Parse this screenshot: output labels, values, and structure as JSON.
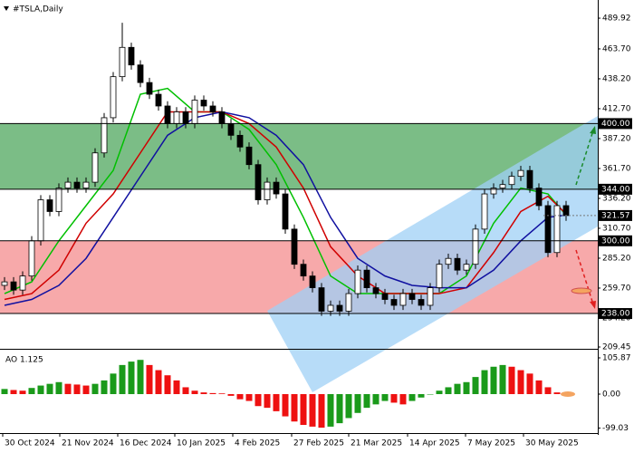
{
  "chart_data": [
    {
      "type": "candlestick",
      "title": "#TSLA,Daily",
      "xlim": [
        -0.5,
        65.5
      ],
      "ylim": [
        207.9,
        505.4
      ],
      "xticks": [
        {
          "value": -0.2,
          "label": "30 Oct 2024"
        },
        {
          "value": 6.1,
          "label": "21 Nov 2024"
        },
        {
          "value": 12.5,
          "label": "16 Dec 2024"
        },
        {
          "value": 18.8,
          "label": "10 Jan 2025"
        },
        {
          "value": 25.2,
          "label": "4 Feb 2025"
        },
        {
          "value": 31.7,
          "label": "27 Feb 2025"
        },
        {
          "value": 38,
          "label": "21 Mar 2025"
        },
        {
          "value": 44.5,
          "label": "14 Apr 2025"
        },
        {
          "value": 50.9,
          "label": "7 May 2025"
        },
        {
          "value": 57.3,
          "label": "30 May 2025"
        }
      ],
      "yticks": [
        {
          "value": 489.92,
          "label": "489.92"
        },
        {
          "value": 463.7,
          "label": "463.70"
        },
        {
          "value": 438.2,
          "label": "438.20"
        },
        {
          "value": 412.7,
          "label": "412.70"
        },
        {
          "value": 387.2,
          "label": "387.20"
        },
        {
          "value": 361.7,
          "label": "361.70"
        },
        {
          "value": 336.2,
          "label": "336.20"
        },
        {
          "value": 310.7,
          "label": "310.70"
        },
        {
          "value": 285.2,
          "label": "285.20"
        },
        {
          "value": 259.7,
          "label": "259.70"
        },
        {
          "value": 234.2,
          "label": "234.20"
        },
        {
          "value": 209.45,
          "label": "209.45"
        }
      ],
      "open": [
        262,
        265,
        258,
        270,
        300,
        335,
        325,
        345,
        350,
        345,
        350,
        375,
        405,
        440,
        465,
        450,
        435,
        425,
        415,
        400,
        410,
        400,
        420,
        415,
        410,
        400,
        390,
        380,
        365,
        335,
        350,
        340,
        310,
        280,
        270,
        260,
        240,
        245,
        240,
        255,
        275,
        260,
        255,
        250,
        245,
        255,
        250,
        245,
        260,
        280,
        285,
        275,
        280,
        310,
        340,
        345,
        348,
        355,
        360,
        345,
        330,
        290,
        330
      ],
      "high": [
        269,
        269,
        274,
        304,
        339,
        339,
        349,
        354,
        354,
        354,
        379,
        409,
        444,
        486,
        469,
        454,
        439,
        429,
        419,
        414,
        414,
        424,
        424,
        419,
        414,
        404,
        394,
        384,
        369,
        354,
        354,
        344,
        314,
        284,
        274,
        264,
        249,
        249,
        259,
        279,
        279,
        264,
        259,
        254,
        259,
        259,
        254,
        264,
        284,
        289,
        289,
        284,
        314,
        344,
        349,
        352,
        359,
        364,
        364,
        349,
        334,
        334,
        334
      ],
      "low": [
        258,
        254,
        254,
        266,
        296,
        321,
        321,
        341,
        341,
        341,
        346,
        371,
        401,
        436,
        446,
        431,
        421,
        411,
        396,
        396,
        396,
        396,
        411,
        406,
        396,
        386,
        376,
        361,
        331,
        331,
        336,
        306,
        276,
        266,
        256,
        236,
        236,
        236,
        236,
        251,
        256,
        251,
        246,
        241,
        241,
        246,
        241,
        241,
        256,
        276,
        271,
        271,
        276,
        306,
        336,
        341,
        344,
        351,
        341,
        326,
        286,
        286,
        317
      ],
      "close": [
        265,
        258,
        270,
        300,
        335,
        325,
        345,
        350,
        345,
        350,
        375,
        405,
        440,
        465,
        450,
        435,
        425,
        415,
        400,
        410,
        400,
        420,
        415,
        410,
        400,
        390,
        380,
        365,
        335,
        350,
        340,
        310,
        280,
        270,
        260,
        240,
        245,
        240,
        255,
        275,
        260,
        255,
        250,
        245,
        255,
        250,
        245,
        260,
        280,
        285,
        275,
        280,
        310,
        340,
        345,
        348,
        355,
        360,
        345,
        330,
        290,
        330,
        321.57
      ],
      "bull_color": "#ffffff",
      "bear_color": "#000000",
      "series": [
        {
          "color": "#00c000",
          "x": [
            0,
            3,
            6,
            9,
            12,
            15,
            18,
            21,
            24,
            27,
            30,
            33,
            36,
            39,
            42,
            45,
            48,
            51,
            54,
            57,
            60,
            62
          ],
          "values": [
            255,
            265,
            300,
            330,
            360,
            425,
            430,
            410,
            410,
            395,
            365,
            320,
            270,
            255,
            255,
            255,
            255,
            270,
            315,
            345,
            340,
            322
          ]
        },
        {
          "color": "#d00000",
          "x": [
            0,
            3,
            6,
            9,
            12,
            15,
            18,
            21,
            24,
            27,
            30,
            33,
            36,
            39,
            42,
            45,
            48,
            51,
            54,
            57,
            60,
            62
          ],
          "values": [
            250,
            255,
            275,
            315,
            340,
            375,
            410,
            410,
            410,
            400,
            380,
            345,
            295,
            270,
            255,
            255,
            255,
            260,
            290,
            325,
            338,
            323
          ]
        },
        {
          "color": "#1010a0",
          "x": [
            0,
            3,
            6,
            9,
            12,
            15,
            18,
            21,
            24,
            27,
            30,
            33,
            36,
            39,
            42,
            45,
            48,
            51,
            54,
            57,
            60,
            62
          ],
          "values": [
            245,
            250,
            262,
            285,
            320,
            355,
            390,
            405,
            410,
            405,
            390,
            365,
            320,
            285,
            270,
            262,
            260,
            260,
            275,
            300,
            320,
            322
          ]
        }
      ],
      "zones": [
        {
          "from": 344,
          "to": 400,
          "color": "#7bbd86"
        },
        {
          "from": 238,
          "to": 300,
          "color": "#f7a9aa"
        }
      ],
      "levels": [
        {
          "value": 400,
          "label": "400.00"
        },
        {
          "value": 344,
          "label": "344.00"
        },
        {
          "value": 300,
          "label": "300.00"
        },
        {
          "value": 238,
          "label": "238.00"
        }
      ],
      "last_price": {
        "value": 321.57,
        "label": "321.57"
      }
    },
    {
      "type": "bar",
      "title": "AO 1.125",
      "xlim": [
        -0.5,
        65.5
      ],
      "ylim": [
        -113.8,
        124.4
      ],
      "yticks": [
        {
          "value": 105.87,
          "label": "105.87"
        },
        {
          "value": 0,
          "label": "0.00"
        },
        {
          "value": -99.03,
          "label": "-99.03"
        }
      ],
      "up_color": "#1a9a1a",
      "down_color": "#ee1111",
      "values": [
        15,
        12,
        10,
        18,
        25,
        30,
        35,
        30,
        28,
        25,
        30,
        40,
        60,
        85,
        95,
        100,
        85,
        70,
        55,
        40,
        20,
        10,
        5,
        3,
        2,
        -5,
        -15,
        -20,
        -35,
        -40,
        -50,
        -65,
        -80,
        -90,
        -95,
        -98,
        -95,
        -85,
        -70,
        -55,
        -40,
        -30,
        -20,
        -25,
        -30,
        -20,
        -10,
        0,
        10,
        20,
        30,
        35,
        50,
        70,
        80,
        85,
        80,
        70,
        60,
        40,
        20,
        5,
        1.125
      ]
    }
  ]
}
